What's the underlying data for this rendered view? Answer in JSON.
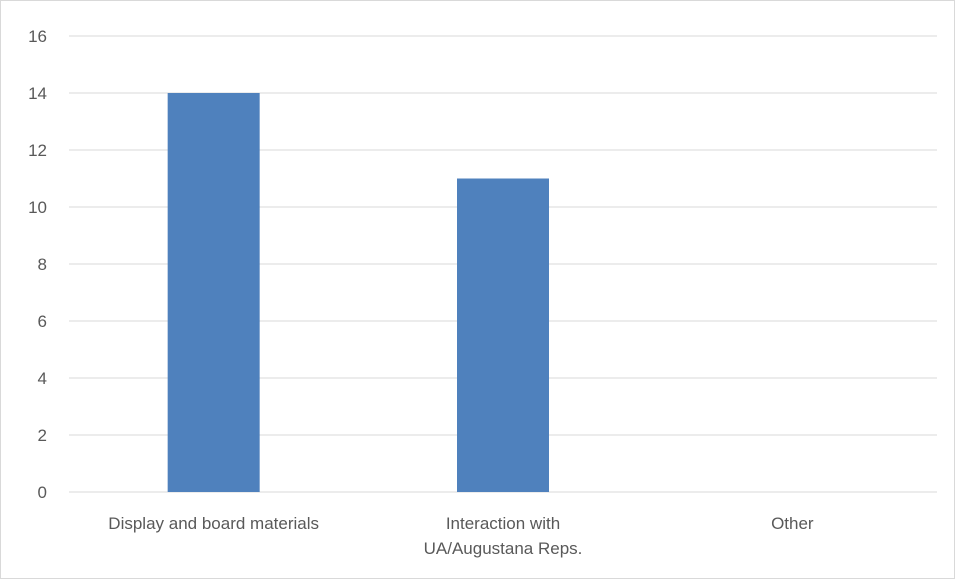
{
  "chart_data": {
    "type": "bar",
    "categories": [
      [
        "Display  and board materials"
      ],
      [
        "Interaction with",
        "UA/Augustana Reps."
      ],
      [
        "Other"
      ]
    ],
    "values": [
      14,
      11,
      0
    ],
    "ylim": [
      0,
      16
    ],
    "yticks": [
      0,
      2,
      4,
      6,
      8,
      10,
      12,
      14,
      16
    ],
    "grid": true,
    "legend": "none",
    "colors": {
      "bar": "#4f81bd",
      "grid": "#d9d9d9",
      "text": "#595959"
    }
  }
}
